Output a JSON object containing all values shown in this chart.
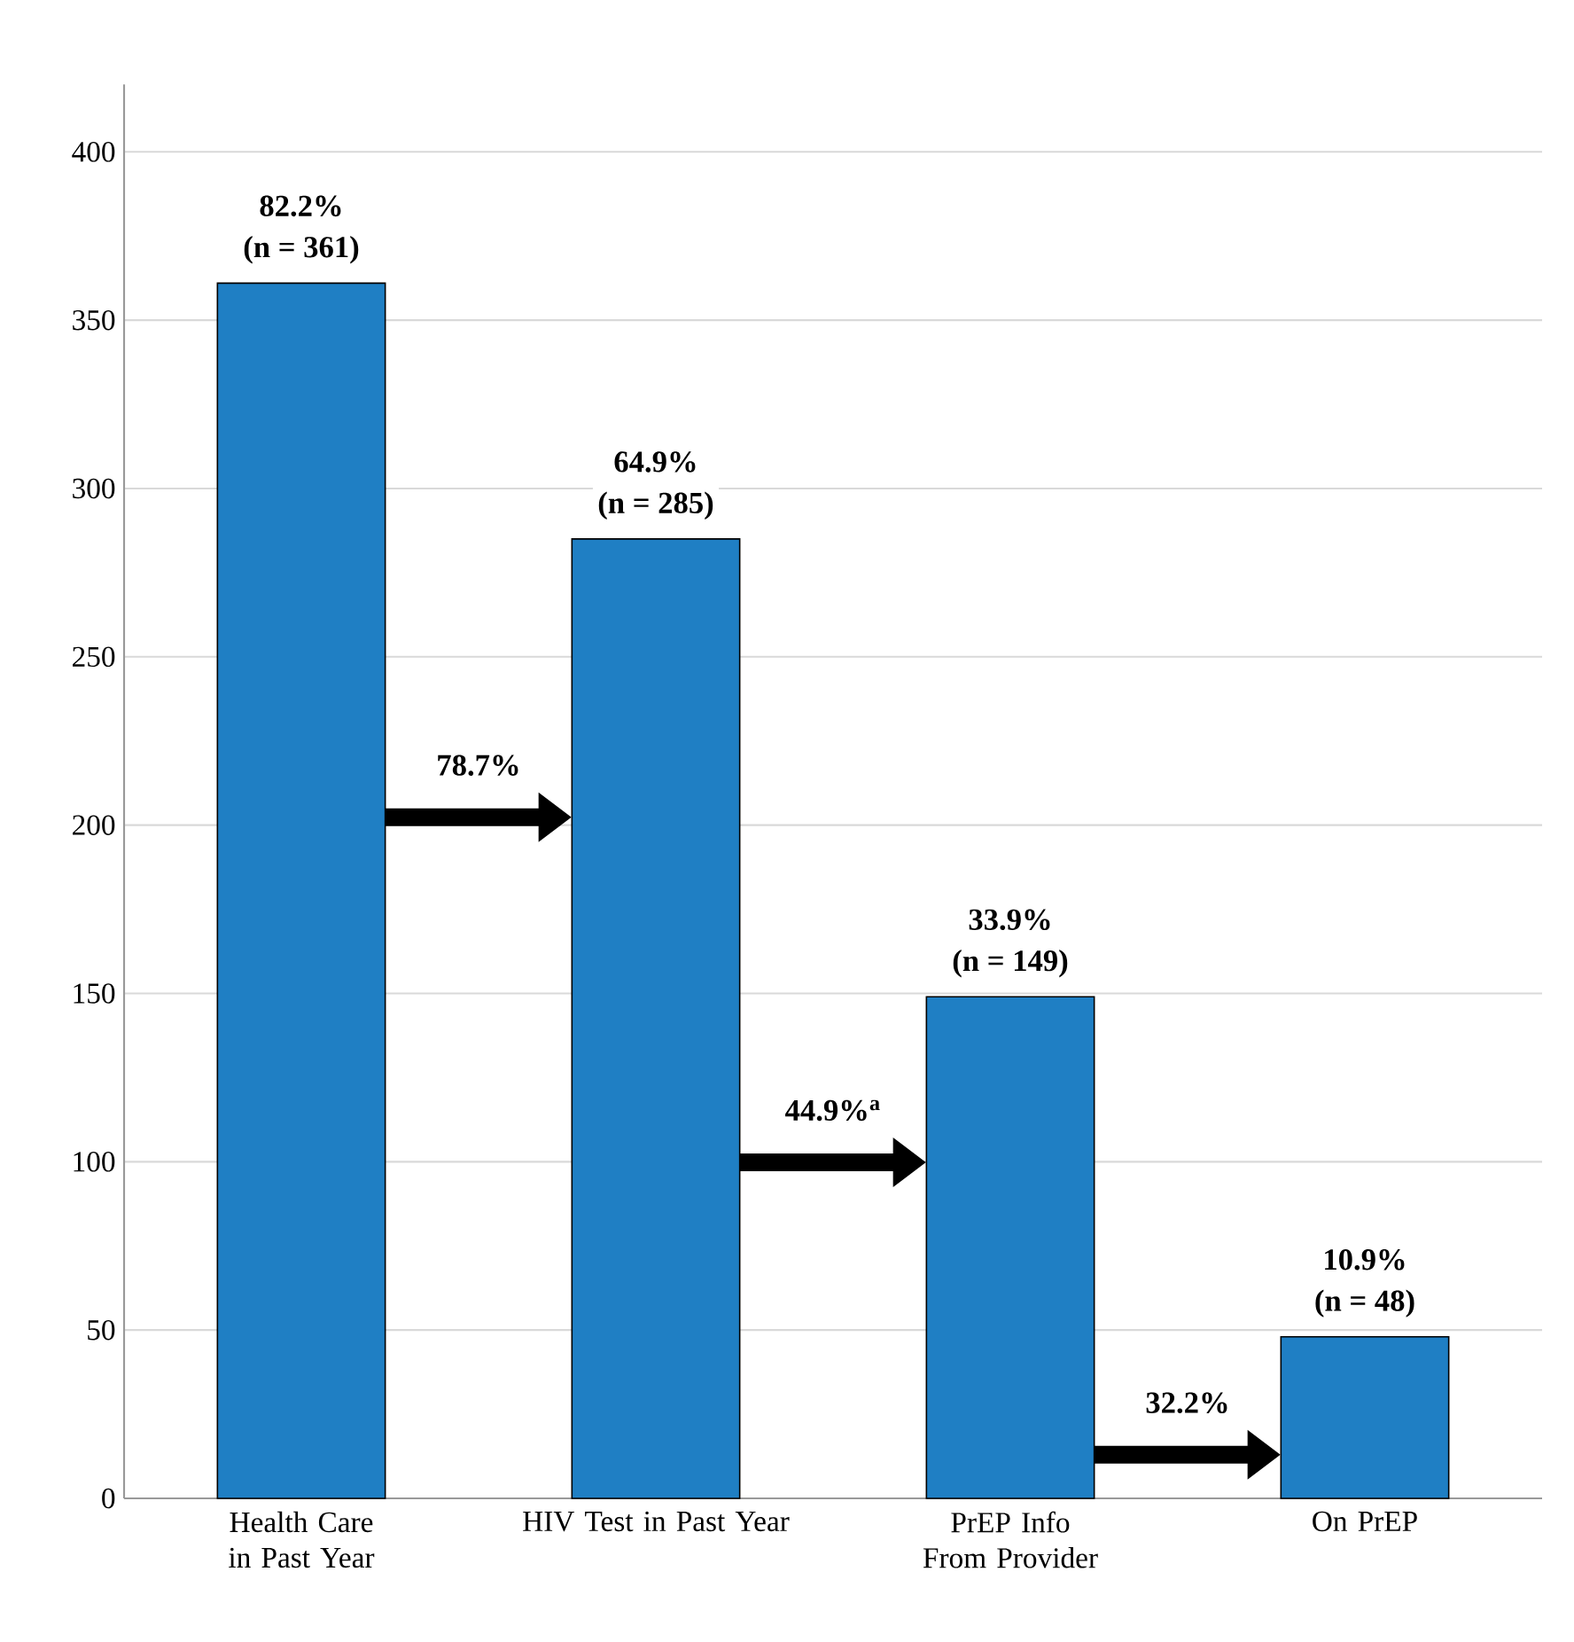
{
  "chart_data": {
    "type": "bar",
    "categories": [
      "Health Care in Past Year",
      "HIV Test in Past Year",
      "PrEP Info From Provider",
      "On PrEP"
    ],
    "values": [
      361,
      285,
      149,
      48
    ],
    "value_labels": [
      "(n = 361)",
      "(n = 285)",
      "(n = 149)",
      "(n = 48)"
    ],
    "color": "#1f7fc4",
    "ylim": [
      0,
      420
    ],
    "yticks": [
      0,
      50,
      100,
      150,
      200,
      250,
      300,
      350,
      400
    ],
    "grid": "y",
    "annotations": [
      "78.7%",
      "44.9%$^{a}$",
      "32.2%",
      {
        "text": "82.2%",
        "x": "Health Care in Past Year",
        "y": 361
      },
      {
        "text": "64.9%",
        "x": "HIV Test in Past Year",
        "y": 285
      },
      {
        "text": "33.9%",
        "x": "PrEP Info From Provider",
        "y": 149
      },
      {
        "text": "10.9%",
        "x": "On PrEP",
        "y": 48
      }
    ]
  }
}
